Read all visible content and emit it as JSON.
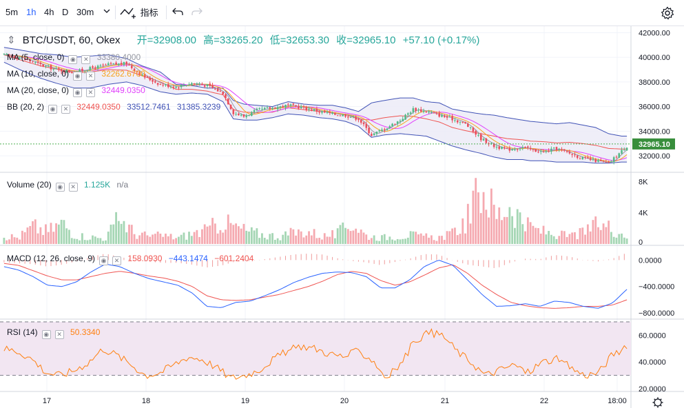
{
  "toolbar": {
    "intervals": [
      "5m",
      "1h",
      "4h",
      "D",
      "30m"
    ],
    "active_interval": "1h",
    "dropdown_icon": "chevron-down-icon",
    "indicators_label": "指标",
    "undo_icon": "undo-icon",
    "redo_icon": "redo-icon",
    "settings_icon": "gear-icon"
  },
  "header": {
    "symbol": "BTC/USDT, 60, Okex",
    "open_label": "开=32908.00",
    "high_label": "高=33265.20",
    "low_label": "低=32653.30",
    "close_label": "收=32965.10",
    "change": "+57.10 (+0.17%)"
  },
  "colors": {
    "up": "#26a69a",
    "down": "#ef5350",
    "candle_up": "#53b987",
    "candle_down": "#eb4d5c",
    "ma5": "#9598a1",
    "ma10": "#f7a21b",
    "ma20": "#e040fb",
    "bb_fill": "#ecebf7",
    "bb_line": "#3f51b5",
    "macd_line": "#2962ff",
    "signal_line": "#ef5350",
    "rsi_line": "#ff7f0e",
    "rsi_fill": "#f2e6f2",
    "price_line": "#4caf50",
    "price_tag_bg": "#388e3c"
  },
  "indicators": {
    "ma5": {
      "label": "MA (5, close, 0)",
      "value": "33380.4000"
    },
    "ma10": {
      "label": "MA (10, close, 0)",
      "value": "32262.6700"
    },
    "ma20": {
      "label": "MA (20, close, 0)",
      "value": "32449.0350"
    },
    "bb": {
      "label": "BB (20, 2)",
      "mid": "32449.0350",
      "upper": "33512.7461",
      "lower": "31385.3239"
    },
    "volume": {
      "label": "Volume (20)",
      "value": "1.125K",
      "ma": "n/a"
    },
    "macd": {
      "label": "MACD (12, 26, close, 9)",
      "hist": "158.0930",
      "macd": "−443.1474",
      "signal": "−601.2404"
    },
    "rsi": {
      "label": "RSI (14)",
      "value": "50.3340"
    }
  },
  "axes": {
    "price_ticks": [
      "42000.00",
      "40000.00",
      "38000.00",
      "36000.00",
      "34000.00",
      "32000.00"
    ],
    "last_price": "32965.10",
    "volume_ticks": [
      "8K",
      "4K",
      "0"
    ],
    "macd_ticks": [
      "0.0000",
      "−400.0000",
      "−800.0000"
    ],
    "rsi_ticks": [
      "60.0000",
      "40.0000",
      "20.0000"
    ],
    "time_ticks": [
      "17",
      "18",
      "19",
      "20",
      "21",
      "22",
      "18:00"
    ]
  },
  "chart_data": {
    "type": "candlestick",
    "price_range": [
      31000,
      42300
    ],
    "price_anchors_x": [
      0,
      6,
      14,
      20,
      27,
      33,
      40,
      47,
      53,
      60,
      66,
      72,
      78,
      84,
      88,
      92,
      97,
      103,
      109,
      115,
      121,
      126,
      131,
      136,
      141,
      146,
      152,
      157,
      162,
      167,
      172,
      177,
      183,
      188,
      193,
      199,
      202,
      207,
      212,
      217,
      222,
      227,
      232,
      237,
      240
    ],
    "price_anchors_y": [
      40200,
      40000,
      39400,
      39000,
      38800,
      39100,
      39400,
      39500,
      38500,
      37800,
      37600,
      37900,
      37700,
      37100,
      35500,
      35200,
      35700,
      35900,
      36100,
      35900,
      35600,
      35400,
      35300,
      35000,
      33700,
      34200,
      34900,
      35800,
      35600,
      35300,
      35000,
      34600,
      33400,
      32800,
      32500,
      32700,
      32500,
      32300,
      32600,
      32200,
      31800,
      31600,
      31400,
      32400,
      32965
    ],
    "bb_upper_anchors_y": [
      40800,
      40600,
      40300,
      40200,
      40000,
      40100,
      40200,
      39900,
      39300,
      38800,
      37800,
      37700,
      37500,
      37500,
      36500,
      36200,
      36100,
      36000,
      36400,
      36200,
      36100,
      36100,
      35900,
      35600,
      36300,
      36500,
      36700,
      36700,
      36400,
      36300,
      35800,
      35600,
      35400,
      35300,
      35100,
      34900,
      34800,
      34700,
      34600,
      34700,
      34500,
      34300,
      33800,
      33600,
      33600
    ],
    "bb_lower_anchors_y": [
      39600,
      39000,
      38300,
      37900,
      37500,
      37500,
      37800,
      38000,
      37700,
      37200,
      37000,
      37100,
      37000,
      36400,
      35000,
      34900,
      34900,
      35100,
      35400,
      35300,
      35100,
      35000,
      34800,
      34400,
      33500,
      33700,
      33800,
      33700,
      33600,
      33200,
      32800,
      32500,
      32200,
      31900,
      31700,
      31700,
      31600,
      31600,
      31500,
      31500,
      31500,
      31400,
      31400,
      31500,
      31500
    ],
    "volume_anchors": [
      1200,
      900,
      2500,
      1800,
      3000,
      1200,
      1000,
      800,
      3800,
      1500,
      1100,
      1200,
      900,
      1500,
      1900,
      3200,
      2400,
      1700,
      1300,
      1100,
      1600,
      1800,
      1100,
      1400,
      3100,
      1200,
      900,
      1100,
      1300,
      1000,
      900,
      1500,
      3600,
      8300,
      4000,
      5800,
      2600,
      1900,
      1400,
      1100,
      1600,
      2800,
      2300,
      1125
    ],
    "macd_anchors": [
      -100,
      -150,
      -250,
      -380,
      -400,
      -330,
      -180,
      -60,
      -100,
      -200,
      -280,
      -330,
      -380,
      -500,
      -700,
      -720,
      -640,
      -620,
      -540,
      -450,
      -340,
      -260,
      -200,
      -180,
      -190,
      -250,
      -420,
      -420,
      -300,
      -100,
      0,
      -80,
      -300,
      -520,
      -700,
      -690,
      -660,
      -700,
      -620,
      -640,
      -700,
      -730,
      -650,
      -443
    ],
    "signal_anchors": [
      -50,
      -80,
      -160,
      -240,
      -300,
      -300,
      -250,
      -200,
      -170,
      -200,
      -240,
      -270,
      -320,
      -400,
      -540,
      -600,
      -610,
      -600,
      -560,
      -520,
      -460,
      -400,
      -320,
      -220,
      -170,
      -200,
      -310,
      -380,
      -330,
      -230,
      -120,
      -70,
      -200,
      -380,
      -520,
      -640,
      -690,
      -720,
      -730,
      -720,
      -700,
      -700,
      -680,
      -601
    ],
    "rsi_anchors": [
      50,
      48,
      42,
      32,
      30,
      34,
      40,
      50,
      45,
      38,
      30,
      32,
      38,
      44,
      42,
      36,
      28,
      30,
      34,
      42,
      48,
      52,
      50,
      46,
      44,
      48,
      42,
      28,
      38,
      56,
      62,
      60,
      48,
      40,
      30,
      34,
      38,
      32,
      40,
      42,
      36,
      30,
      32,
      46,
      50
    ],
    "rsi_bands": [
      70,
      30
    ],
    "rsi_range": [
      20,
      70
    ],
    "macd_range": [
      -830,
      160
    ],
    "volume_range": [
      0,
      9000
    ],
    "candle_count": 240
  }
}
